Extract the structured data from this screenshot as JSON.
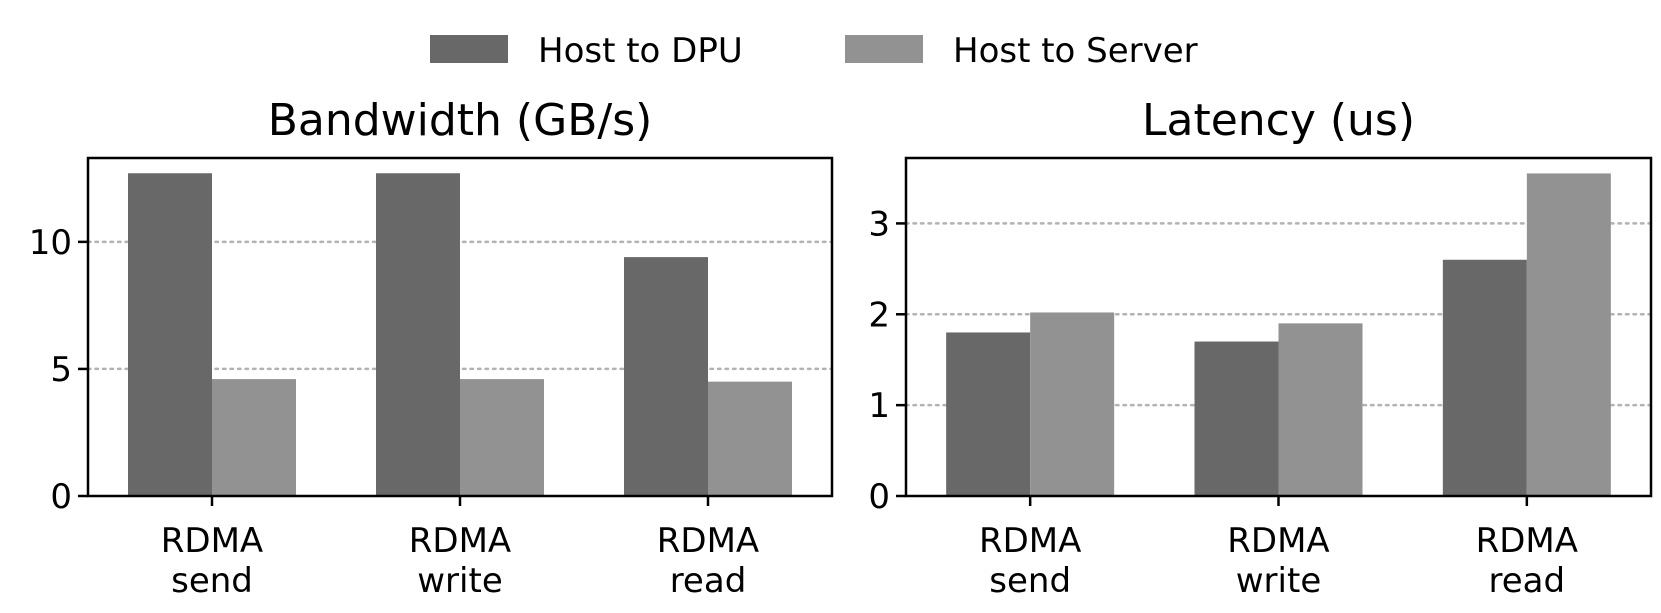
{
  "legend": [
    {
      "name": "Host to DPU",
      "color": "#686868"
    },
    {
      "name": "Host to Server",
      "color": "#929292"
    }
  ],
  "chart_data": [
    {
      "type": "bar",
      "title": "Bandwidth (GB/s)",
      "categories": [
        [
          "RDMA",
          "send"
        ],
        [
          "RDMA",
          "write"
        ],
        [
          "RDMA",
          "read"
        ]
      ],
      "series": [
        {
          "name": "Host to DPU",
          "values": [
            12.7,
            12.7,
            9.4
          ]
        },
        {
          "name": "Host to Server",
          "values": [
            4.6,
            4.6,
            4.5
          ]
        }
      ],
      "ylim": [
        0,
        13.3
      ],
      "yticks": [
        0,
        5,
        10
      ],
      "grid": "y-dotted",
      "legend_position": "top-center"
    },
    {
      "type": "bar",
      "title": "Latency (us)",
      "categories": [
        [
          "RDMA",
          "send"
        ],
        [
          "RDMA",
          "write"
        ],
        [
          "RDMA",
          "read"
        ]
      ],
      "series": [
        {
          "name": "Host to DPU",
          "values": [
            1.8,
            1.7,
            2.6
          ]
        },
        {
          "name": "Host to Server",
          "values": [
            2.02,
            1.9,
            3.55
          ]
        }
      ],
      "ylim": [
        0,
        3.72
      ],
      "yticks": [
        0,
        1,
        2,
        3
      ],
      "grid": "y-dotted",
      "legend_position": "top-center"
    }
  ]
}
